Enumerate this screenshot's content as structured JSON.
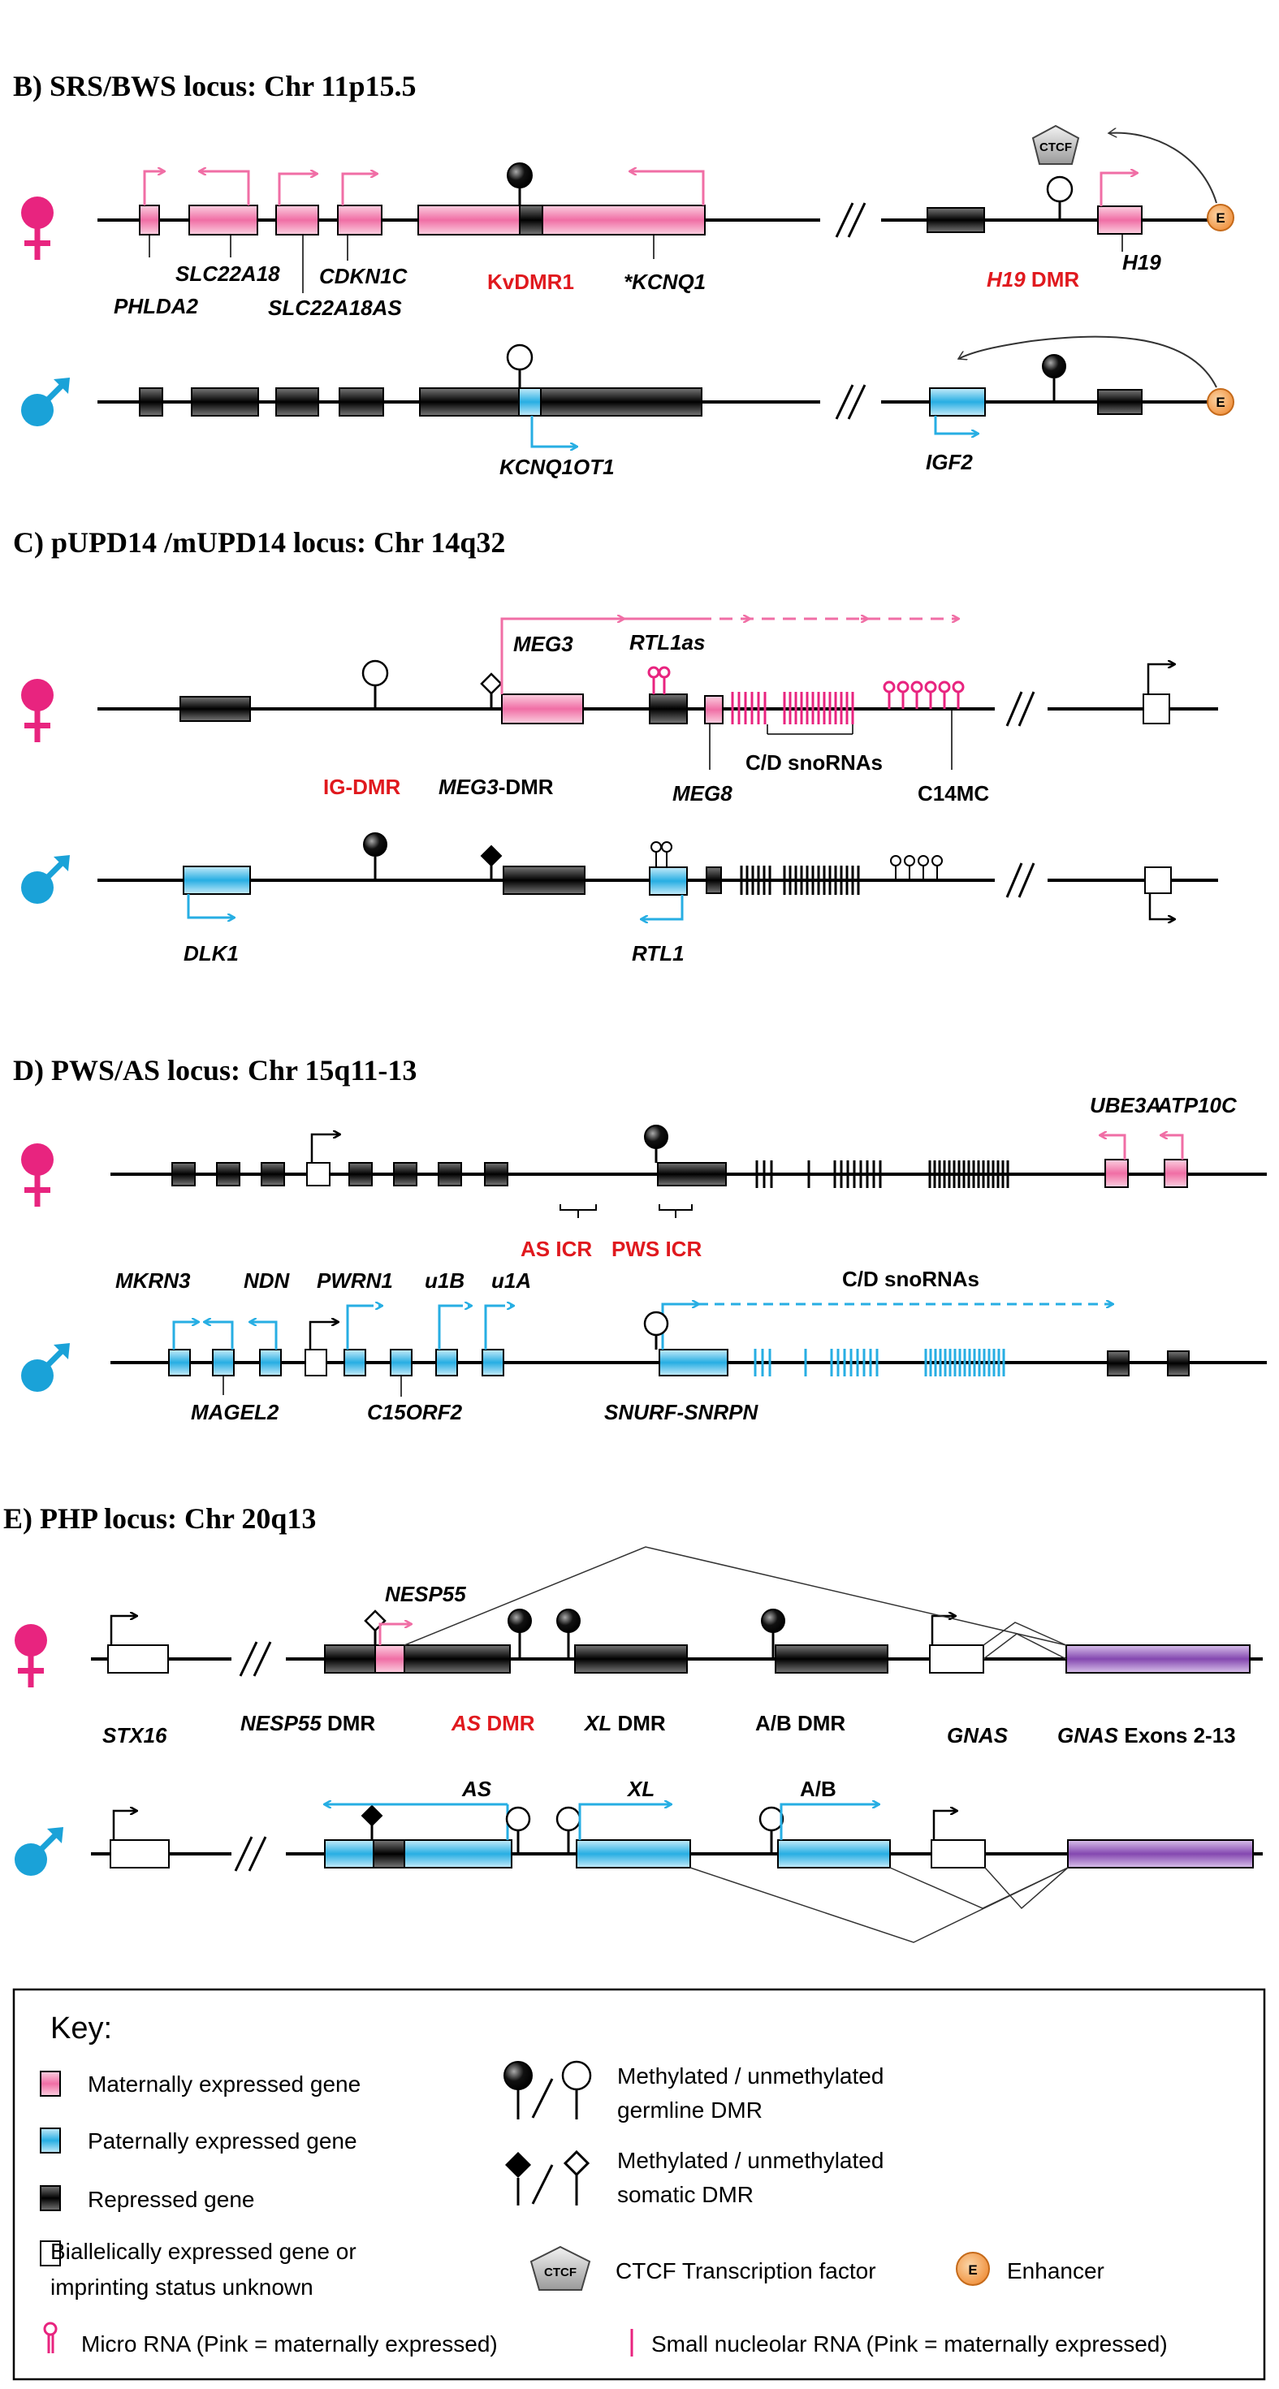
{
  "colors": {
    "maternal": "#f48fb1",
    "paternal": "#3fb8e6",
    "repressed": "#1a1a1a",
    "label_red": "#e0191e",
    "imprinting_red": "#e0191e",
    "gnas_exons": "#8e5bb4",
    "enhancer": "#f0a050"
  },
  "section_b": {
    "title": "B) SRS/BWS locus: Chr 11p15.5",
    "maternal_labels": {
      "phlda2": "PHLDA2",
      "slc22a18": "SLC22A18",
      "slc22a18as": "SLC22A18AS",
      "cdkn1c": "CDKN1C",
      "kvdmr1": "KvDMR1",
      "kcnq1": "*KCNQ1",
      "h19dmr_it": "H19",
      "h19dmr": " DMR",
      "h19": "H19",
      "ctcf": "CTCF",
      "enhancer": "E"
    },
    "paternal_labels": {
      "kcnq1ot1": "KCNQ1OT1",
      "igf2": "IGF2",
      "enhancer": "E"
    }
  },
  "section_c": {
    "title": "C) pUPD14 /mUPD14 locus: Chr 14q32",
    "maternal_labels": {
      "meg3": "MEG3",
      "rtl1as": "RTL1as",
      "igdmr": "IG-DMR",
      "meg3dmr_it": "MEG3",
      "meg3dmr": "-DMR",
      "meg8": "MEG8",
      "cd_snornas": "C/D snoRNAs",
      "c14mc": "C14MC"
    },
    "paternal_labels": {
      "dlk1": "DLK1",
      "rtl1": "RTL1"
    }
  },
  "section_d": {
    "title": "D) PWS/AS locus: Chr 15q11-13",
    "maternal_labels": {
      "ube3a": "UBE3A",
      "atp10c": "ATP10C",
      "as_icr": "AS ICR",
      "pws_icr": "PWS ICR"
    },
    "paternal_labels": {
      "mkrn3": "MKRN3",
      "ndn": "NDN",
      "pwrn1": "PWRN1",
      "u1b": "u1B",
      "u1a": "u1A",
      "cd_snornas": "C/D snoRNAs",
      "magel2": "MAGEL2",
      "c15orf2": "C15ORF2",
      "snurf": "SNURF-SNRPN"
    }
  },
  "section_e": {
    "title": "E) PHP locus: Chr 20q13",
    "maternal_labels": {
      "nesp55": "NESP55",
      "stx16": "STX16",
      "nesp55dmr_it": "NESP55",
      "nesp55dmr": " DMR",
      "asdmr_it": "AS",
      "asdmr": " DMR",
      "xldmr_it": "XL",
      "xldmr": " DMR",
      "abdmr": "A/B DMR",
      "gnas": "GNAS",
      "gnas_exons_it": "GNAS",
      "gnas_exons": " Exons 2-13"
    },
    "paternal_labels": {
      "as": "AS",
      "xl": "XL",
      "ab": "A/B"
    }
  },
  "key": {
    "title": "Key:",
    "maternal": "Maternally expressed gene",
    "paternal": "Paternally expressed gene",
    "repressed": "Repressed gene",
    "biallelic_1": "Biallelically expressed gene or",
    "biallelic_2": "imprinting status unknown",
    "microrna": "Micro RNA (Pink = maternally expressed)",
    "germline_1": "Methylated  / unmethylated",
    "germline_2": "germline DMR",
    "somatic_1": "Methylated  / unmethylated",
    "somatic_2": "somatic DMR",
    "ctcf": "CTCF Transcription factor",
    "ctcf_icon": "CTCF",
    "enhancer": "Enhancer",
    "enhancer_icon": "E",
    "snorna": "Small nucleolar RNA (Pink = maternally expressed)"
  },
  "icons": [
    "female-symbol-icon",
    "male-symbol-icon",
    "arrow-icon",
    "lollipop-icon",
    "diamond-lollipop-icon",
    "ctcf-pentagon-icon",
    "enhancer-circle-icon"
  ]
}
